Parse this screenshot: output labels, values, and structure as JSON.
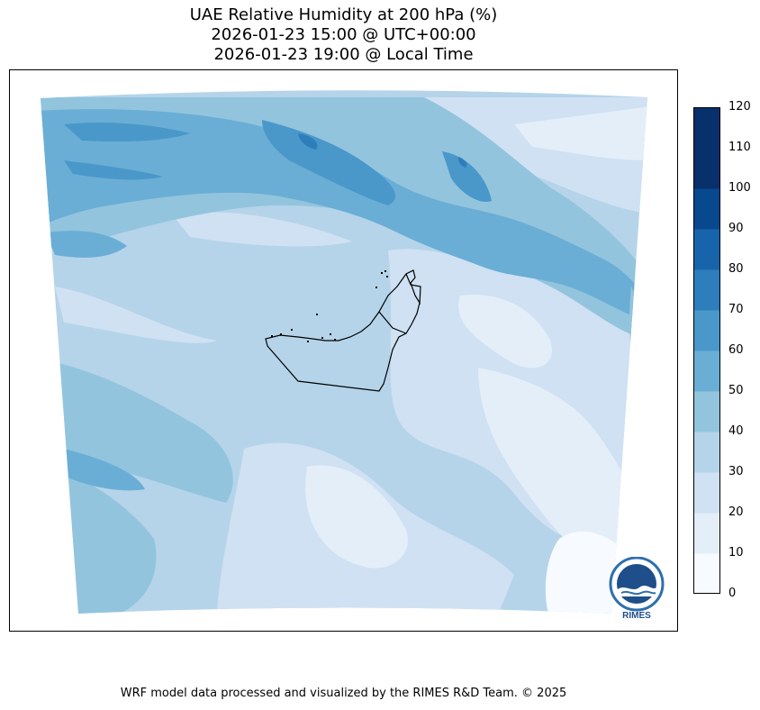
{
  "title": {
    "line1": "UAE Relative Humidity at 200 hPa (%)",
    "line2": "2026-01-23 15:00 @ UTC+00:00",
    "line3": "2026-01-23 19:00 @ Local Time"
  },
  "colorbar": {
    "ticks": [
      "0",
      "10",
      "20",
      "30",
      "40",
      "50",
      "60",
      "70",
      "80",
      "90",
      "100",
      "110",
      "120"
    ],
    "colors": [
      "#f7fbff",
      "#e3eef9",
      "#cfe1f2",
      "#b5d4e9",
      "#93c4de",
      "#6aaed6",
      "#4a98c9",
      "#2e7ebc",
      "#1764ab",
      "#08488e",
      "#08306b",
      "#08306b"
    ]
  },
  "logo": {
    "text": "RIMES",
    "icon": "rimes-logo-icon"
  },
  "footer": "WRF model data processed and visualized by the RIMES R&D Team. © 2025"
}
